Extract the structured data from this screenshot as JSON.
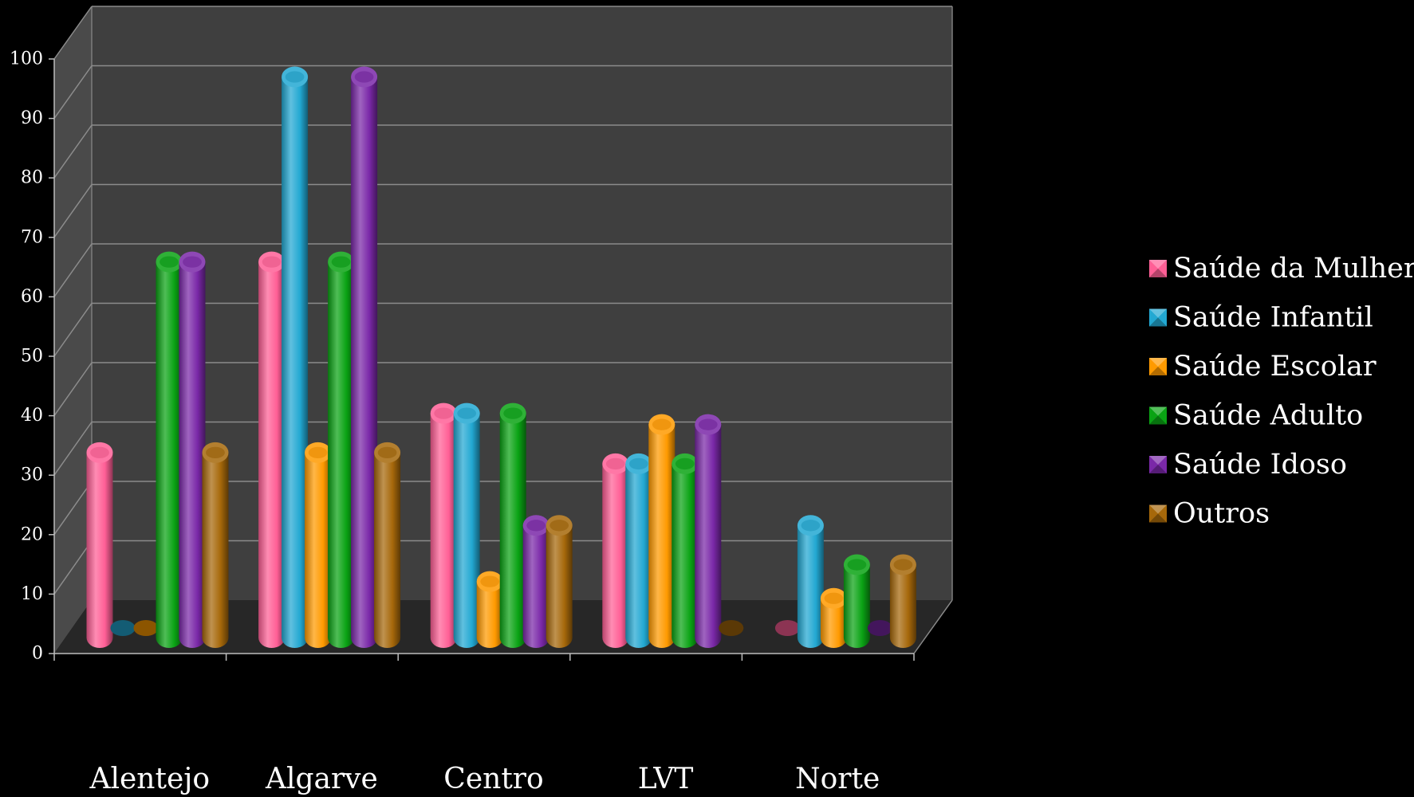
{
  "chart_data": {
    "type": "bar",
    "title": "",
    "xlabel": "",
    "ylabel": "",
    "ylim": [
      0,
      100
    ],
    "y_ticks": [
      "0",
      "10",
      "20",
      "30",
      "40",
      "50",
      "60",
      "70",
      "80",
      "90",
      "100"
    ],
    "grid": true,
    "legend_position": "right",
    "categories": [
      "Alentejo",
      "Algarve",
      "Centro",
      "LVT",
      "Norte"
    ],
    "series": [
      {
        "name": "Saúde da Mulher",
        "color": "#ff5f96",
        "values": [
          33,
          67,
          40,
          31,
          0
        ]
      },
      {
        "name": "Saúde Infantil",
        "color": "#22a8d2",
        "values": [
          0,
          100,
          40,
          31,
          20
        ]
      },
      {
        "name": "Saúde Escolar",
        "color": "#ff9a00",
        "values": [
          0,
          33,
          10,
          38,
          7
        ]
      },
      {
        "name": "Saúde Adulto",
        "color": "#0aa314",
        "values": [
          67,
          67,
          40,
          31,
          13
        ]
      },
      {
        "name": "Saúde Idoso",
        "color": "#7a28a8",
        "values": [
          67,
          100,
          20,
          38,
          0
        ]
      },
      {
        "name": "Outros",
        "color": "#a6680a",
        "values": [
          33,
          33,
          20,
          0,
          13
        ]
      }
    ]
  }
}
